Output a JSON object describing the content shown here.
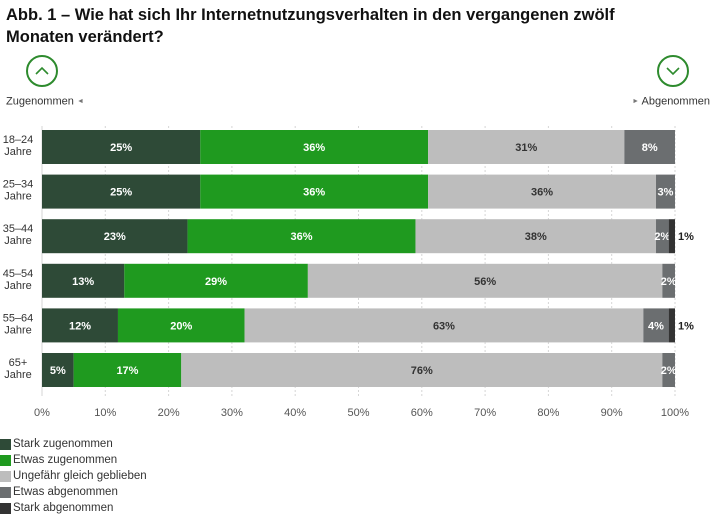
{
  "header": {
    "title": "Abb. 1 – Wie hat sich Ihr Internetnutzungsverhalten in den vergangenen zwölf Monaten verändert?",
    "left_label": "Zugenommen",
    "right_label": "Abgenommen",
    "up_icon": "chevron-up-icon",
    "down_icon": "chevron-down-icon"
  },
  "colors": {
    "stark_zu": "#2e4a37",
    "etwas_zu": "#1f9a1f",
    "gleich": "#bdbdbd",
    "etwas_ab": "#6b6e70",
    "stark_ab": "#333333",
    "accent": "#2e8b2e"
  },
  "chart_data": {
    "type": "bar",
    "orientation": "horizontal-stacked",
    "categories": [
      "18–24 Jahre",
      "25–34 Jahre",
      "35–44 Jahre",
      "45–54 Jahre",
      "55–64 Jahre",
      "65+ Jahre"
    ],
    "category_lines": [
      [
        "18–24",
        "Jahre"
      ],
      [
        "25–34",
        "Jahre"
      ],
      [
        "35–44",
        "Jahre"
      ],
      [
        "45–54",
        "Jahre"
      ],
      [
        "55–64",
        "Jahre"
      ],
      [
        "65+",
        "Jahre"
      ]
    ],
    "series": [
      {
        "name": "Stark zugenommen",
        "values": [
          25,
          25,
          23,
          13,
          12,
          5
        ]
      },
      {
        "name": "Etwas zugenommen",
        "values": [
          36,
          36,
          36,
          29,
          20,
          17
        ]
      },
      {
        "name": "Ungefähr gleich geblieben",
        "values": [
          31,
          36,
          38,
          56,
          63,
          76
        ]
      },
      {
        "name": "Etwas abgenommen",
        "values": [
          8,
          3,
          2,
          2,
          4,
          2
        ]
      },
      {
        "name": "Stark abgenommen",
        "values": [
          0,
          0,
          1,
          0,
          1,
          0
        ]
      }
    ],
    "xlim": [
      0,
      100
    ],
    "xticks": [
      "0%",
      "10%",
      "20%",
      "30%",
      "40%",
      "50%",
      "60%",
      "70%",
      "80%",
      "90%",
      "100%"
    ],
    "grid": true,
    "legend": "bottom-left"
  }
}
